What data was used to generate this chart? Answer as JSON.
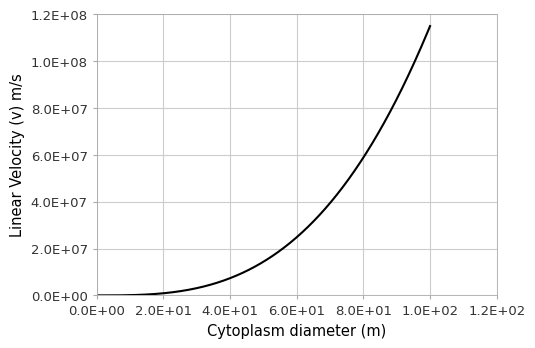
{
  "title": "",
  "xlabel": "Cytoplasm diameter (m)",
  "ylabel": "Linear Velocity (v) m/s",
  "xlim": [
    0,
    120.0
  ],
  "ylim": [
    0,
    120000000.0
  ],
  "xticks": [
    0,
    20.0,
    40.0,
    60.0,
    80.0,
    100.0,
    120.0
  ],
  "yticks": [
    0,
    20000000.0,
    40000000.0,
    60000000.0,
    80000000.0,
    100000000.0,
    120000000.0
  ],
  "xtick_labels": [
    "0.0E+00",
    "2.0E+01",
    "4.0E+01",
    "6.0E+01",
    "8.0E+01",
    "1.0E+02",
    "1.2E+02"
  ],
  "ytick_labels": [
    "0.0E+00",
    "2.0E+07",
    "4.0E+07",
    "6.0E+07",
    "8.0E+07",
    "1.0E+08",
    "1.2E+08"
  ],
  "line_color": "#000000",
  "line_width": 1.5,
  "background_color": "#ffffff",
  "grid_color": "#cccccc",
  "font_family": "sans-serif",
  "tick_fontsize": 9.5,
  "label_fontsize": 10.5
}
